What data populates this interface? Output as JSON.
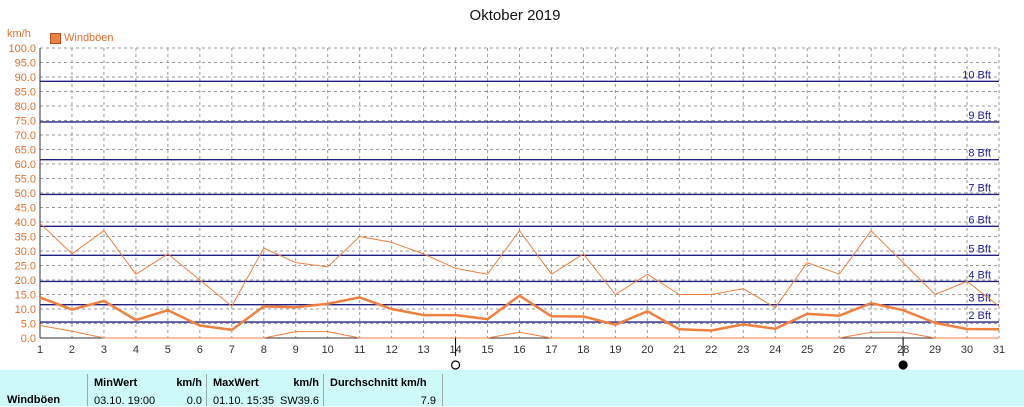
{
  "title": "Oktober 2019",
  "unit_label": "km/h",
  "legend": {
    "label": "Windböen",
    "color": "#f08040"
  },
  "chart_data": {
    "type": "line",
    "title": "Oktober 2019",
    "ylabel": "km/h",
    "xlabel": "",
    "ylim": [
      0,
      100
    ],
    "xlim": [
      1,
      31
    ],
    "y_ticks": [
      "0.0",
      "5.0",
      "10.0",
      "15.0",
      "20.0",
      "25.0",
      "30.0",
      "35.0",
      "40.0",
      "45.0",
      "50.0",
      "55.0",
      "60.0",
      "65.0",
      "70.0",
      "75.0",
      "80.0",
      "85.0",
      "90.0",
      "95.0",
      "100.0"
    ],
    "x_ticks": [
      "1",
      "2",
      "3",
      "4",
      "5",
      "6",
      "7",
      "8",
      "9",
      "10",
      "11",
      "12",
      "13",
      "14",
      "15",
      "16",
      "17",
      "18",
      "19",
      "20",
      "21",
      "22",
      "23",
      "24",
      "25",
      "26",
      "27",
      "28",
      "29",
      "30",
      "31"
    ],
    "grid": true,
    "series": [
      {
        "name": "Windböen",
        "color": "#f08040",
        "width": 2.5,
        "x": [
          1,
          2,
          3,
          4,
          5,
          6,
          7,
          8,
          9,
          10,
          11,
          12,
          13,
          14,
          15,
          16,
          17,
          18,
          19,
          20,
          21,
          22,
          23,
          24,
          25,
          26,
          27,
          28,
          29,
          30,
          31
        ],
        "y": [
          14,
          9.8,
          12.8,
          6.2,
          9.6,
          4.3,
          2.8,
          10.9,
          10.6,
          11.8,
          14.0,
          10.0,
          7.9,
          7.9,
          6.5,
          14.6,
          7.5,
          7.4,
          4.6,
          9.2,
          3.0,
          2.6,
          4.7,
          3.2,
          8.3,
          7.7,
          12.0,
          9.6,
          5.2,
          3.1,
          3.0
        ]
      },
      {
        "name": "",
        "color": "#f08040",
        "width": 1,
        "x": [
          1,
          2,
          3,
          4,
          5,
          6,
          7,
          8,
          9,
          10,
          11,
          12,
          13,
          14,
          15,
          16,
          17,
          18,
          19,
          20,
          21,
          22,
          23,
          24,
          25,
          26,
          27,
          28,
          29,
          30,
          31
        ],
        "y": [
          39.6,
          29.0,
          37.0,
          22.0,
          29.0,
          20.0,
          11.0,
          31.0,
          26.0,
          24.5,
          35.0,
          33.0,
          29.0,
          24.0,
          22.0,
          37.0,
          22.0,
          29.0,
          15.0,
          22.0,
          15.0,
          15.0,
          17.0,
          10.5,
          26.0,
          22.0,
          37.0,
          26.0,
          15.0,
          19.5,
          11.0
        ]
      },
      {
        "name": "",
        "color": "#f08040",
        "width": 1,
        "x": [
          1,
          2,
          3,
          4,
          5,
          6,
          7,
          8,
          9,
          10,
          11,
          12,
          13,
          14,
          15,
          16,
          17,
          18,
          19,
          20,
          21,
          22,
          23,
          24,
          25,
          26,
          27,
          28,
          29,
          30,
          31
        ],
        "y": [
          4.3,
          2.3,
          0,
          0,
          0,
          0,
          0,
          0,
          2.2,
          2.2,
          0,
          0,
          0,
          0,
          0,
          2.0,
          0,
          0,
          0,
          0,
          0,
          0,
          0,
          0,
          0,
          0,
          2.0,
          2.0,
          0,
          0,
          0
        ]
      }
    ],
    "beaufort_lines": [
      {
        "label": "2 Bft",
        "value": 5.5
      },
      {
        "label": "3 Bft",
        "value": 11.5
      },
      {
        "label": "4 Bft",
        "value": 19.5
      },
      {
        "label": "5 Bft",
        "value": 28.5
      },
      {
        "label": "6 Bft",
        "value": 38.5
      },
      {
        "label": "7 Bft",
        "value": 49.5
      },
      {
        "label": "8 Bft",
        "value": 61.5
      },
      {
        "label": "9 Bft",
        "value": 74.5
      },
      {
        "label": "10 Bft",
        "value": 88.5
      }
    ],
    "moon_phases": [
      {
        "day": 14,
        "phase": "full"
      },
      {
        "day": 28,
        "phase": "new"
      }
    ]
  },
  "stats": {
    "name": "Windböen",
    "min_header": "MinWert",
    "min_unit": "km/h",
    "min_time": "03.10.  19:00",
    "min_value": "0.0",
    "max_header": "MaxWert",
    "max_unit": "km/h",
    "max_time": "01.10.  15:35",
    "max_dir": "SW",
    "max_value": "39.6",
    "avg_header": "Durchschnitt km/h",
    "avg_value": "7.9"
  }
}
